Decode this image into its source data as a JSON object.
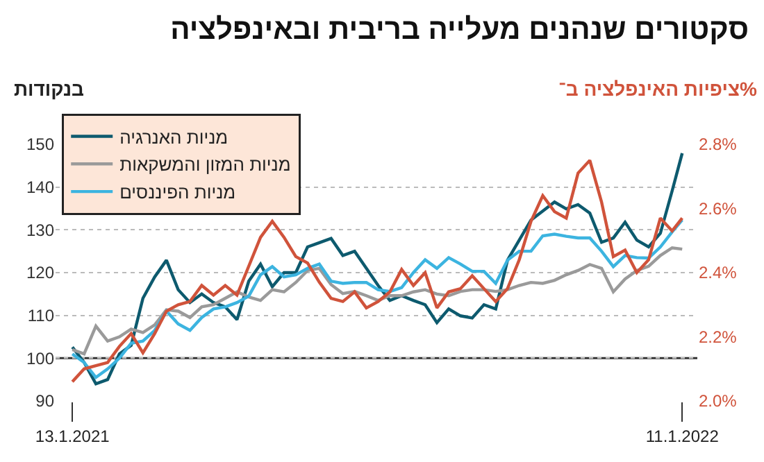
{
  "chart_data": {
    "type": "line",
    "title": "סקטורים שנהנים מעלייה בריבית ובאינפלציה",
    "ylabel": "בנקודות",
    "y2label": "ציפיות האינפלציה ב־%",
    "x": [
      "2021-01-13",
      "2021-01-20",
      "2021-01-27",
      "2021-02-03",
      "2021-02-10",
      "2021-02-17",
      "2021-02-24",
      "2021-03-03",
      "2021-03-10",
      "2021-03-17",
      "2021-03-24",
      "2021-03-31",
      "2021-04-07",
      "2021-04-14",
      "2021-04-21",
      "2021-04-28",
      "2021-05-05",
      "2021-05-12",
      "2021-05-19",
      "2021-05-26",
      "2021-06-02",
      "2021-06-09",
      "2021-06-16",
      "2021-06-23",
      "2021-06-30",
      "2021-07-07",
      "2021-07-14",
      "2021-07-21",
      "2021-07-28",
      "2021-08-04",
      "2021-08-11",
      "2021-08-18",
      "2021-08-25",
      "2021-09-01",
      "2021-09-08",
      "2021-09-15",
      "2021-09-22",
      "2021-09-29",
      "2021-10-06",
      "2021-10-13",
      "2021-10-20",
      "2021-10-27",
      "2021-11-03",
      "2021-11-10",
      "2021-11-17",
      "2021-11-24",
      "2021-12-01",
      "2021-12-08",
      "2021-12-15",
      "2021-12-22",
      "2021-12-29",
      "2022-01-05",
      "2022-01-11"
    ],
    "series": [
      {
        "name": "מניות האנרגיה",
        "color": "#0d5a6e",
        "values": [
          102.6,
          99,
          94,
          95,
          101,
          103,
          114,
          119,
          122.9,
          116,
          113,
          115,
          113,
          112,
          109,
          118,
          122,
          116.7,
          120,
          120,
          126,
          127,
          128,
          124,
          125,
          121,
          117,
          113.5,
          114.6,
          113.5,
          112.5,
          108.3,
          111.5,
          109.9,
          109.4,
          112.5,
          111.5,
          122.9,
          127.6,
          132.3,
          134.4,
          136.5,
          134.9,
          135.9,
          133.9,
          127.1,
          128.1,
          131.8,
          127.6,
          126,
          129.2,
          139.1,
          147.9
        ]
      },
      {
        "name": "מניות המזון והמשקאות",
        "color": "#9a9a9a",
        "values": [
          102,
          101,
          107.5,
          104,
          105,
          106.8,
          106,
          107.8,
          111.3,
          111,
          109.5,
          112,
          112.5,
          114,
          115.5,
          114.3,
          113.5,
          116,
          115.5,
          117.7,
          120.5,
          121,
          117.2,
          115.1,
          115.6,
          114.6,
          113.5,
          114.6,
          114.6,
          115.5,
          116,
          115,
          114.6,
          115.6,
          116,
          116,
          115.6,
          116,
          117,
          117.7,
          117.5,
          118.2,
          119.5,
          120.5,
          121.9,
          121,
          115.5,
          118.5,
          120.5,
          121.5,
          124,
          125.8,
          125.5
        ]
      },
      {
        "name": "מניות הפיננסים",
        "color": "#3cb4e0",
        "values": [
          101,
          99,
          95.5,
          97.5,
          100,
          103.5,
          104,
          106.5,
          111,
          108,
          106.5,
          109.5,
          111.5,
          112,
          113,
          114.5,
          119.5,
          121.4,
          119,
          119.5,
          121,
          122,
          118,
          117.5,
          117.7,
          117.7,
          116,
          115.6,
          116.5,
          120,
          123,
          121,
          123.5,
          122,
          120.3,
          120.3,
          117.5,
          122.9,
          125,
          125,
          128.6,
          129,
          128.5,
          128.1,
          128.1,
          125,
          121.4,
          124,
          123.5,
          123.4,
          126,
          129.5,
          132.3
        ]
      },
      {
        "color": "#d0533b",
        "axis": "y2",
        "values": [
          2.06,
          2.1,
          2.11,
          2.12,
          2.17,
          2.21,
          2.15,
          2.21,
          2.28,
          2.3,
          2.31,
          2.36,
          2.33,
          2.36,
          2.33,
          2.42,
          2.51,
          2.56,
          2.51,
          2.45,
          2.43,
          2.37,
          2.32,
          2.31,
          2.34,
          2.29,
          2.31,
          2.34,
          2.41,
          2.36,
          2.4,
          2.29,
          2.34,
          2.35,
          2.39,
          2.35,
          2.31,
          2.35,
          2.44,
          2.56,
          2.64,
          2.59,
          2.57,
          2.71,
          2.75,
          2.62,
          2.45,
          2.47,
          2.4,
          2.44,
          2.57,
          2.53,
          2.57
        ]
      }
    ],
    "xlim": [
      "2021-01-03",
      "2022-01-20"
    ],
    "xticks": [
      {
        "value": "2021-01-13",
        "label": "13.1.2021"
      },
      {
        "value": "2022-01-11",
        "label": "11.1.2022"
      }
    ],
    "ylim": [
      90,
      150
    ],
    "yticks": [
      90,
      100,
      110,
      120,
      130,
      140,
      150
    ],
    "y2lim": [
      2.0,
      2.8
    ],
    "y2ticks": [
      {
        "value": 2.0,
        "label": "2.0%"
      },
      {
        "value": 2.2,
        "label": "2.2%"
      },
      {
        "value": 2.4,
        "label": "2.4%"
      },
      {
        "value": 2.6,
        "label": "2.6%"
      },
      {
        "value": 2.8,
        "label": "2.8%"
      }
    ],
    "ref_lines": [
      {
        "axis": "y",
        "value": 100,
        "color": "#333333",
        "line_style": "solid"
      }
    ],
    "grid": "y",
    "legend": "top left",
    "marker": "none",
    "line_style": "solid"
  }
}
